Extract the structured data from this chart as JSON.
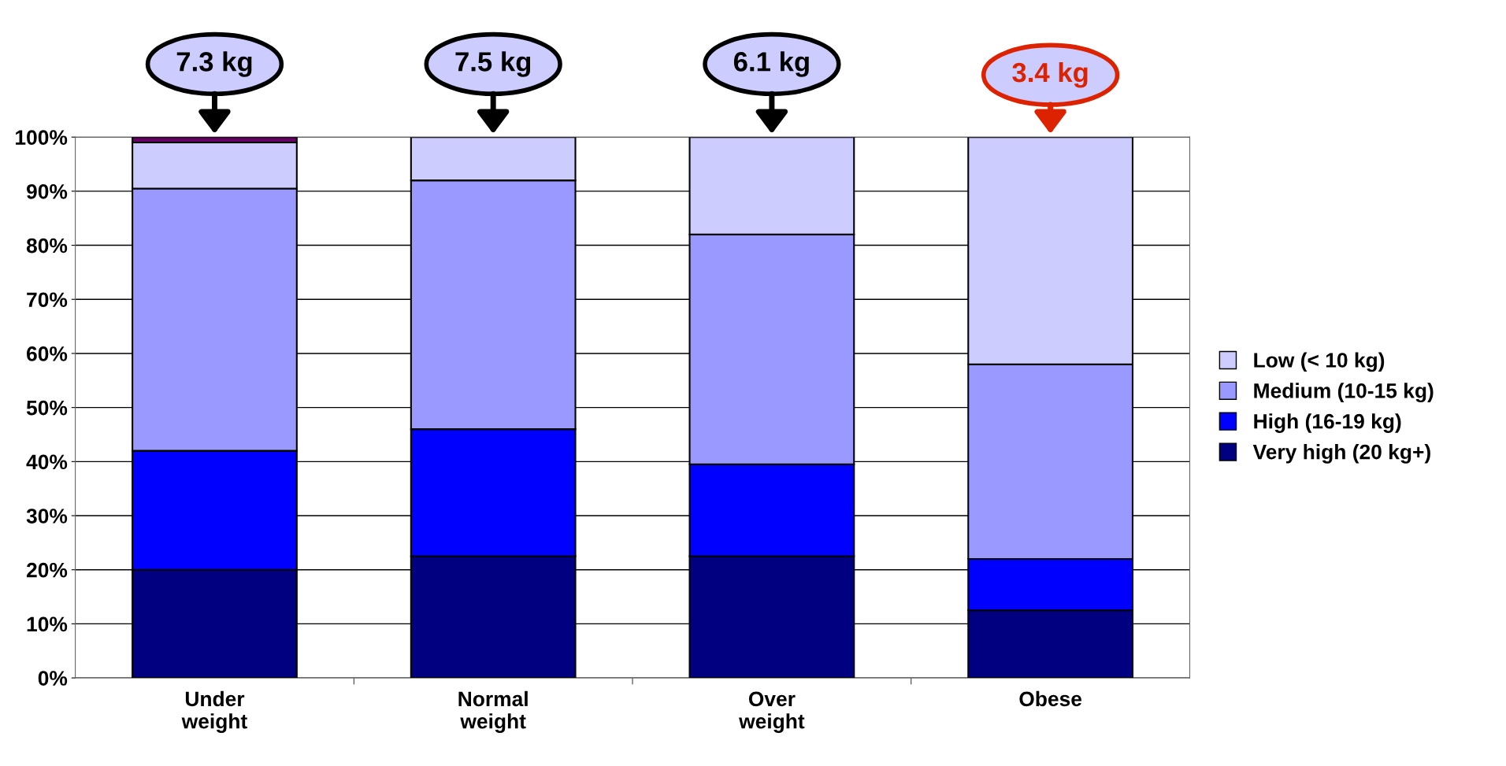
{
  "chart_data": {
    "type": "bar",
    "stacked": true,
    "categories": [
      "Under\nweight",
      "Normal\nweight",
      "Over\nweight",
      "Obese"
    ],
    "series": [
      {
        "name": "Very high (20 kg+)",
        "color": "#000080",
        "values": [
          20,
          22.5,
          22.5,
          12.5
        ]
      },
      {
        "name": "High (16-19 kg)",
        "color": "#0000ff",
        "values": [
          22,
          23.5,
          17,
          9.5
        ]
      },
      {
        "name": "Medium (10-15 kg)",
        "color": "#9999ff",
        "values": [
          48.5,
          46,
          42.5,
          36
        ]
      },
      {
        "name": "Low (< 10 kg)",
        "color": "#ccccff",
        "values": [
          8.5,
          8,
          18,
          42
        ]
      },
      {
        "color": "#660066",
        "values": [
          1,
          null,
          null,
          null
        ]
      }
    ],
    "ylim": [
      0,
      100
    ],
    "yticks": [
      {
        "value": 0,
        "label": "0%"
      },
      {
        "value": 10,
        "label": "10%"
      },
      {
        "value": 20,
        "label": "20%"
      },
      {
        "value": 30,
        "label": "30%"
      },
      {
        "value": 40,
        "label": "40%"
      },
      {
        "value": 50,
        "label": "50%"
      },
      {
        "value": 60,
        "label": "60%"
      },
      {
        "value": 70,
        "label": "70%"
      },
      {
        "value": 80,
        "label": "80%"
      },
      {
        "value": 90,
        "label": "90%"
      },
      {
        "value": 100,
        "label": "100%"
      }
    ],
    "grid": "y",
    "legend": "right",
    "annotations": [
      "7.3 kg",
      "7.5 kg",
      "6.1 kg",
      "3.4 kg"
    ]
  }
}
